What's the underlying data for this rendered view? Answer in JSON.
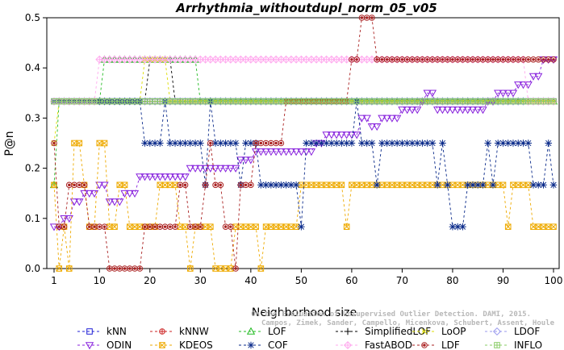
{
  "chart_data": {
    "type": "line",
    "title": "Arrhythmia_withoutdupl_norm_05_v05",
    "xlabel": "Neighborhood size",
    "ylabel": "P@n",
    "xlim": [
      1,
      100
    ],
    "ylim": [
      0,
      0.5
    ],
    "x_ticks": [
      1,
      10,
      20,
      30,
      40,
      50,
      60,
      70,
      80,
      90,
      100
    ],
    "y_ticks": [
      0.0,
      0.1,
      0.2,
      0.3,
      0.4,
      0.5
    ],
    "grid": false,
    "legend_position": "bottom",
    "credit_lines": [
      "Campos, Zimek, Sander, Campello, Micenkova, Schubert, Assent, Houle",
      "On the Evaluation of Unsupervised Outlier Detection. DAMI, 2015."
    ],
    "series": [
      {
        "name": "kNN",
        "color": "#1f1fd6",
        "marker": "square",
        "segments": [
          [
            1,
            0.3333
          ],
          [
            100,
            0.3333
          ]
        ]
      },
      {
        "name": "kNNW",
        "color": "#cc2222",
        "marker": "circle-plus",
        "segments": [
          [
            1,
            0.3333
          ],
          [
            100,
            0.3333
          ]
        ]
      },
      {
        "name": "LOF",
        "color": "#22bb22",
        "marker": "triangle-up",
        "segments": [
          [
            1,
            0.1667
          ],
          [
            2,
            0.3333
          ],
          [
            10,
            0.3333
          ],
          [
            11,
            0.4167
          ],
          [
            29,
            0.4167
          ],
          [
            30,
            0.3333
          ],
          [
            100,
            0.3333
          ]
        ]
      },
      {
        "name": "SimplifiedLOF",
        "color": "#000000",
        "marker": "plus",
        "segments": [
          [
            1,
            0.3333
          ],
          [
            19,
            0.3333
          ],
          [
            20,
            0.4167
          ],
          [
            24,
            0.4167
          ],
          [
            25,
            0.3333
          ],
          [
            100,
            0.3333
          ]
        ]
      },
      {
        "name": "LoOP",
        "color": "#dddd00",
        "marker": "x",
        "segments": [
          [
            1,
            0.25
          ],
          [
            2,
            0.3333
          ],
          [
            18,
            0.3333
          ],
          [
            19,
            0.4167
          ],
          [
            23,
            0.4167
          ],
          [
            24,
            0.3333
          ],
          [
            100,
            0.3333
          ]
        ]
      },
      {
        "name": "LDOF",
        "color": "#9999ee",
        "marker": "diamond",
        "segments": [
          [
            1,
            0.3333
          ],
          [
            100,
            0.3333
          ]
        ]
      },
      {
        "name": "ODIN",
        "color": "#8822dd",
        "marker": "triangle-down",
        "segments": [
          [
            1,
            0.0833
          ],
          [
            3,
            0.1
          ],
          [
            5,
            0.1333
          ],
          [
            7,
            0.15
          ],
          [
            10,
            0.1667
          ],
          [
            12,
            0.1333
          ],
          [
            15,
            0.15
          ],
          [
            18,
            0.1833
          ],
          [
            25,
            0.1833
          ],
          [
            28,
            0.2
          ],
          [
            34,
            0.2
          ],
          [
            38,
            0.2167
          ],
          [
            41,
            0.2333
          ],
          [
            48,
            0.2333
          ],
          [
            53,
            0.25
          ],
          [
            55,
            0.2667
          ],
          [
            58,
            0.2667
          ],
          [
            62,
            0.3
          ],
          [
            64,
            0.2833
          ],
          [
            66,
            0.3
          ],
          [
            70,
            0.3167
          ],
          [
            74,
            0.3333
          ],
          [
            75,
            0.35
          ],
          [
            77,
            0.3167
          ],
          [
            83,
            0.3167
          ],
          [
            87,
            0.3333
          ],
          [
            89,
            0.35
          ],
          [
            93,
            0.3667
          ],
          [
            96,
            0.3833
          ],
          [
            98,
            0.4167
          ],
          [
            100,
            0.4167
          ]
        ]
      },
      {
        "name": "KDEOS",
        "color": "#eeaa00",
        "marker": "square-x",
        "segments": [
          [
            1,
            0.1667
          ],
          [
            2,
            0.0
          ],
          [
            3,
            0.0833
          ],
          [
            4,
            0.0
          ],
          [
            5,
            0.25
          ],
          [
            7,
            0.1667
          ],
          [
            8,
            0.0833
          ],
          [
            10,
            0.25
          ],
          [
            12,
            0.0833
          ],
          [
            14,
            0.1667
          ],
          [
            16,
            0.0833
          ],
          [
            22,
            0.1667
          ],
          [
            26,
            0.0833
          ],
          [
            28,
            0.0
          ],
          [
            29,
            0.0833
          ],
          [
            33,
            0.0
          ],
          [
            37,
            0.0833
          ],
          [
            42,
            0.0
          ],
          [
            43,
            0.0833
          ],
          [
            50,
            0.1667
          ],
          [
            58,
            0.1667
          ],
          [
            59,
            0.0833
          ],
          [
            60,
            0.1667
          ],
          [
            90,
            0.1667
          ],
          [
            91,
            0.0833
          ],
          [
            92,
            0.1667
          ],
          [
            96,
            0.0833
          ],
          [
            100,
            0.0833
          ]
        ]
      },
      {
        "name": "COF",
        "color": "#0a2a8a",
        "marker": "asterisk",
        "segments": [
          [
            1,
            0.3333
          ],
          [
            18,
            0.3333
          ],
          [
            19,
            0.25
          ],
          [
            22,
            0.25
          ],
          [
            23,
            0.3333
          ],
          [
            24,
            0.25
          ],
          [
            30,
            0.25
          ],
          [
            31,
            0.1667
          ],
          [
            32,
            0.3333
          ],
          [
            33,
            0.25
          ],
          [
            37,
            0.25
          ],
          [
            38,
            0.1667
          ],
          [
            39,
            0.25
          ],
          [
            41,
            0.25
          ],
          [
            42,
            0.1667
          ],
          [
            49,
            0.1667
          ],
          [
            50,
            0.0833
          ],
          [
            51,
            0.25
          ],
          [
            60,
            0.25
          ],
          [
            61,
            0.3333
          ],
          [
            62,
            0.25
          ],
          [
            64,
            0.25
          ],
          [
            65,
            0.1667
          ],
          [
            66,
            0.25
          ],
          [
            76,
            0.25
          ],
          [
            77,
            0.1667
          ],
          [
            78,
            0.25
          ],
          [
            79,
            0.1667
          ],
          [
            80,
            0.0833
          ],
          [
            82,
            0.0833
          ],
          [
            83,
            0.1667
          ],
          [
            86,
            0.1667
          ],
          [
            87,
            0.25
          ],
          [
            88,
            0.1667
          ],
          [
            89,
            0.25
          ],
          [
            95,
            0.25
          ],
          [
            96,
            0.1667
          ],
          [
            99,
            0.25
          ],
          [
            100,
            0.1667
          ]
        ]
      },
      {
        "name": "FastABOD",
        "color": "#ffaaee",
        "marker": "diamond-plus",
        "segments": [
          [
            1,
            0.3333
          ],
          [
            9,
            0.3333
          ],
          [
            10,
            0.4167
          ],
          [
            94,
            0.4167
          ],
          [
            95,
            0.3333
          ],
          [
            100,
            0.3333
          ]
        ]
      },
      {
        "name": "LDF",
        "color": "#aa2222",
        "marker": "circle-dot",
        "segments": [
          [
            1,
            0.25
          ],
          [
            2,
            0.0833
          ],
          [
            4,
            0.1667
          ],
          [
            7,
            0.1667
          ],
          [
            8,
            0.0833
          ],
          [
            11,
            0.0833
          ],
          [
            12,
            0.0
          ],
          [
            18,
            0.0
          ],
          [
            19,
            0.0833
          ],
          [
            26,
            0.1667
          ],
          [
            28,
            0.0833
          ],
          [
            31,
            0.1667
          ],
          [
            32,
            0.25
          ],
          [
            33,
            0.1667
          ],
          [
            35,
            0.0833
          ],
          [
            37,
            0.0
          ],
          [
            38,
            0.1667
          ],
          [
            40,
            0.1667
          ],
          [
            41,
            0.25
          ],
          [
            45,
            0.25
          ],
          [
            47,
            0.3333
          ],
          [
            57,
            0.3333
          ],
          [
            60,
            0.4167
          ],
          [
            62,
            0.5
          ],
          [
            63,
            0.5
          ],
          [
            65,
            0.4167
          ],
          [
            100,
            0.4167
          ]
        ]
      },
      {
        "name": "INFLO",
        "color": "#88cc66",
        "marker": "square-cross",
        "segments": [
          [
            1,
            0.3333
          ],
          [
            100,
            0.3333
          ]
        ]
      }
    ]
  }
}
